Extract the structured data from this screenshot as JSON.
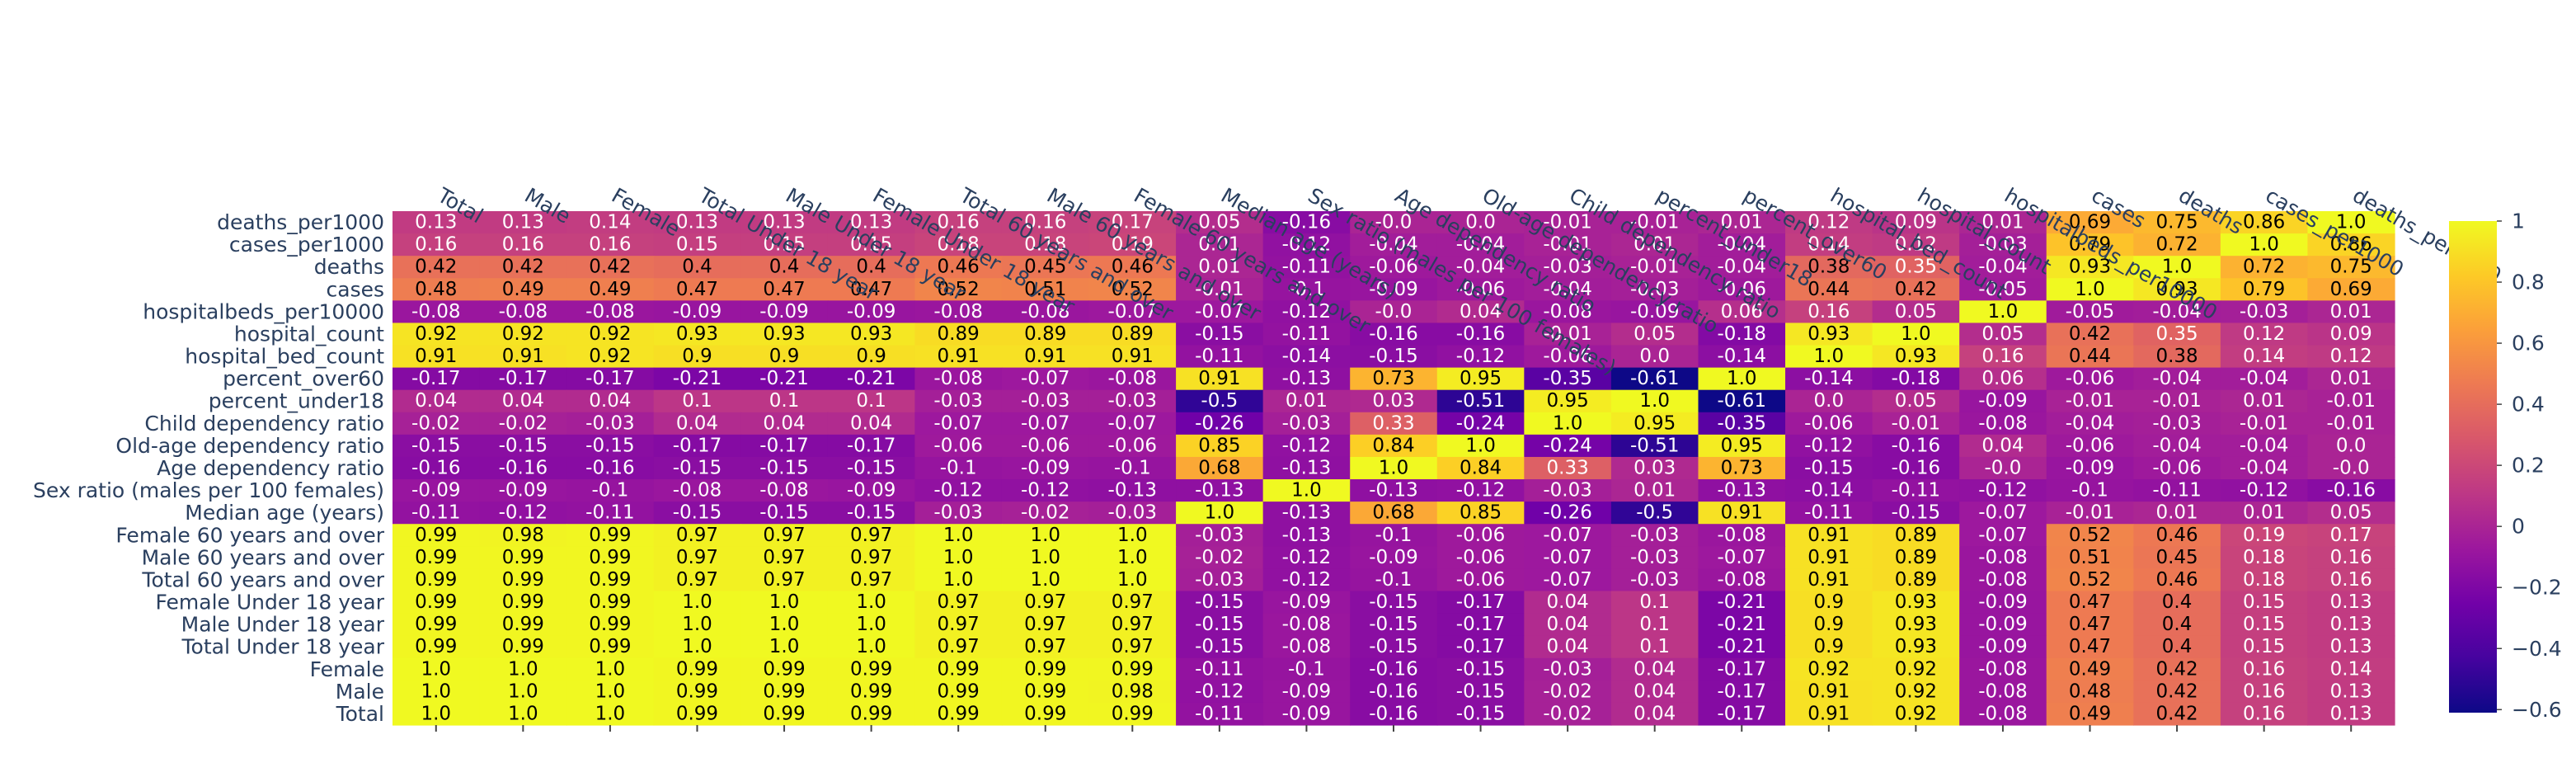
{
  "chart_data": {
    "type": "heatmap",
    "title": "",
    "xlabel": "",
    "ylabel": "",
    "x_categories": [
      "Total",
      "Male",
      "Female",
      "Total Under 18 year",
      "Male Under 18 year",
      "Female Under 18 year",
      "Total 60 years and over",
      "Male 60 years and over",
      "Female 60 years and over",
      "Median age (years)",
      "Sex ratio (males per 100 females)",
      "Age dependency ratio",
      "Old-age dependency ratio",
      "Child dependency ratio",
      "percent_under18",
      "percent_over60",
      "hospital_bed_count",
      "hospital_count",
      "hospitalbeds_per10000",
      "cases",
      "deaths",
      "cases_per1000",
      "deaths_per1000"
    ],
    "y_categories": [
      "deaths_per1000",
      "cases_per1000",
      "deaths",
      "cases",
      "hospitalbeds_per10000",
      "hospital_count",
      "hospital_bed_count",
      "percent_over60",
      "percent_under18",
      "Child dependency ratio",
      "Old-age dependency ratio",
      "Age dependency ratio",
      "Sex ratio (males per 100 females)",
      "Median age (years)",
      "Female 60 years and over",
      "Male 60 years and over",
      "Total 60 years and over",
      "Female Under 18 year",
      "Male Under 18 year",
      "Total Under 18 year",
      "Female",
      "Male",
      "Total"
    ],
    "z": [
      [
        "0.13",
        "0.13",
        "0.14",
        "0.13",
        "0.13",
        "0.13",
        "0.16",
        "0.16",
        "0.17",
        "0.05",
        "-0.16",
        "-0.0",
        "0.0",
        "-0.01",
        "-0.01",
        "0.01",
        "0.12",
        "0.09",
        "0.01",
        "0.69",
        "0.75",
        "0.86",
        "1.0"
      ],
      [
        "0.16",
        "0.16",
        "0.16",
        "0.15",
        "0.15",
        "0.15",
        "0.18",
        "0.18",
        "0.19",
        "0.01",
        "-0.12",
        "-0.04",
        "-0.04",
        "-0.01",
        "0.01",
        "-0.04",
        "0.14",
        "0.12",
        "-0.03",
        "0.79",
        "0.72",
        "1.0",
        "0.86"
      ],
      [
        "0.42",
        "0.42",
        "0.42",
        "0.4",
        "0.4",
        "0.4",
        "0.46",
        "0.45",
        "0.46",
        "0.01",
        "-0.11",
        "-0.06",
        "-0.04",
        "-0.03",
        "-0.01",
        "-0.04",
        "0.38",
        "0.35",
        "-0.04",
        "0.93",
        "1.0",
        "0.72",
        "0.75"
      ],
      [
        "0.48",
        "0.49",
        "0.49",
        "0.47",
        "0.47",
        "0.47",
        "0.52",
        "0.51",
        "0.52",
        "-0.01",
        "-0.1",
        "-0.09",
        "-0.06",
        "-0.04",
        "-0.03",
        "-0.06",
        "0.44",
        "0.42",
        "-0.05",
        "1.0",
        "0.93",
        "0.79",
        "0.69"
      ],
      [
        "-0.08",
        "-0.08",
        "-0.08",
        "-0.09",
        "-0.09",
        "-0.09",
        "-0.08",
        "-0.08",
        "-0.07",
        "-0.07",
        "-0.12",
        "-0.0",
        "0.04",
        "-0.08",
        "-0.09",
        "0.06",
        "0.16",
        "0.05",
        "1.0",
        "-0.05",
        "-0.04",
        "-0.03",
        "0.01"
      ],
      [
        "0.92",
        "0.92",
        "0.92",
        "0.93",
        "0.93",
        "0.93",
        "0.89",
        "0.89",
        "0.89",
        "-0.15",
        "-0.11",
        "-0.16",
        "-0.16",
        "-0.01",
        "0.05",
        "-0.18",
        "0.93",
        "1.0",
        "0.05",
        "0.42",
        "0.35",
        "0.12",
        "0.09"
      ],
      [
        "0.91",
        "0.91",
        "0.92",
        "0.9",
        "0.9",
        "0.9",
        "0.91",
        "0.91",
        "0.91",
        "-0.11",
        "-0.14",
        "-0.15",
        "-0.12",
        "-0.06",
        "0.0",
        "-0.14",
        "1.0",
        "0.93",
        "0.16",
        "0.44",
        "0.38",
        "0.14",
        "0.12"
      ],
      [
        "-0.17",
        "-0.17",
        "-0.17",
        "-0.21",
        "-0.21",
        "-0.21",
        "-0.08",
        "-0.07",
        "-0.08",
        "0.91",
        "-0.13",
        "0.73",
        "0.95",
        "-0.35",
        "-0.61",
        "1.0",
        "-0.14",
        "-0.18",
        "0.06",
        "-0.06",
        "-0.04",
        "-0.04",
        "0.01"
      ],
      [
        "0.04",
        "0.04",
        "0.04",
        "0.1",
        "0.1",
        "0.1",
        "-0.03",
        "-0.03",
        "-0.03",
        "-0.5",
        "0.01",
        "0.03",
        "-0.51",
        "0.95",
        "1.0",
        "-0.61",
        "0.0",
        "0.05",
        "-0.09",
        "-0.01",
        "-0.01",
        "0.01",
        "-0.01"
      ],
      [
        "-0.02",
        "-0.02",
        "-0.03",
        "0.04",
        "0.04",
        "0.04",
        "-0.07",
        "-0.07",
        "-0.07",
        "-0.26",
        "-0.03",
        "0.33",
        "-0.24",
        "1.0",
        "0.95",
        "-0.35",
        "-0.06",
        "-0.01",
        "-0.08",
        "-0.04",
        "-0.03",
        "-0.01",
        "-0.01"
      ],
      [
        "-0.15",
        "-0.15",
        "-0.15",
        "-0.17",
        "-0.17",
        "-0.17",
        "-0.06",
        "-0.06",
        "-0.06",
        "0.85",
        "-0.12",
        "0.84",
        "1.0",
        "-0.24",
        "-0.51",
        "0.95",
        "-0.12",
        "-0.16",
        "0.04",
        "-0.06",
        "-0.04",
        "-0.04",
        "0.0"
      ],
      [
        "-0.16",
        "-0.16",
        "-0.16",
        "-0.15",
        "-0.15",
        "-0.15",
        "-0.1",
        "-0.09",
        "-0.1",
        "0.68",
        "-0.13",
        "1.0",
        "0.84",
        "0.33",
        "0.03",
        "0.73",
        "-0.15",
        "-0.16",
        "-0.0",
        "-0.09",
        "-0.06",
        "-0.04",
        "-0.0"
      ],
      [
        "-0.09",
        "-0.09",
        "-0.1",
        "-0.08",
        "-0.08",
        "-0.09",
        "-0.12",
        "-0.12",
        "-0.13",
        "-0.13",
        "1.0",
        "-0.13",
        "-0.12",
        "-0.03",
        "0.01",
        "-0.13",
        "-0.14",
        "-0.11",
        "-0.12",
        "-0.1",
        "-0.11",
        "-0.12",
        "-0.16"
      ],
      [
        "-0.11",
        "-0.12",
        "-0.11",
        "-0.15",
        "-0.15",
        "-0.15",
        "-0.03",
        "-0.02",
        "-0.03",
        "1.0",
        "-0.13",
        "0.68",
        "0.85",
        "-0.26",
        "-0.5",
        "0.91",
        "-0.11",
        "-0.15",
        "-0.07",
        "-0.01",
        "0.01",
        "0.01",
        "0.05"
      ],
      [
        "0.99",
        "0.98",
        "0.99",
        "0.97",
        "0.97",
        "0.97",
        "1.0",
        "1.0",
        "1.0",
        "-0.03",
        "-0.13",
        "-0.1",
        "-0.06",
        "-0.07",
        "-0.03",
        "-0.08",
        "0.91",
        "0.89",
        "-0.07",
        "0.52",
        "0.46",
        "0.19",
        "0.17"
      ],
      [
        "0.99",
        "0.99",
        "0.99",
        "0.97",
        "0.97",
        "0.97",
        "1.0",
        "1.0",
        "1.0",
        "-0.02",
        "-0.12",
        "-0.09",
        "-0.06",
        "-0.07",
        "-0.03",
        "-0.07",
        "0.91",
        "0.89",
        "-0.08",
        "0.51",
        "0.45",
        "0.18",
        "0.16"
      ],
      [
        "0.99",
        "0.99",
        "0.99",
        "0.97",
        "0.97",
        "0.97",
        "1.0",
        "1.0",
        "1.0",
        "-0.03",
        "-0.12",
        "-0.1",
        "-0.06",
        "-0.07",
        "-0.03",
        "-0.08",
        "0.91",
        "0.89",
        "-0.08",
        "0.52",
        "0.46",
        "0.18",
        "0.16"
      ],
      [
        "0.99",
        "0.99",
        "0.99",
        "1.0",
        "1.0",
        "1.0",
        "0.97",
        "0.97",
        "0.97",
        "-0.15",
        "-0.09",
        "-0.15",
        "-0.17",
        "0.04",
        "0.1",
        "-0.21",
        "0.9",
        "0.93",
        "-0.09",
        "0.47",
        "0.4",
        "0.15",
        "0.13"
      ],
      [
        "0.99",
        "0.99",
        "0.99",
        "1.0",
        "1.0",
        "1.0",
        "0.97",
        "0.97",
        "0.97",
        "-0.15",
        "-0.08",
        "-0.15",
        "-0.17",
        "0.04",
        "0.1",
        "-0.21",
        "0.9",
        "0.93",
        "-0.09",
        "0.47",
        "0.4",
        "0.15",
        "0.13"
      ],
      [
        "0.99",
        "0.99",
        "0.99",
        "1.0",
        "1.0",
        "1.0",
        "0.97",
        "0.97",
        "0.97",
        "-0.15",
        "-0.08",
        "-0.15",
        "-0.17",
        "0.04",
        "0.1",
        "-0.21",
        "0.9",
        "0.93",
        "-0.09",
        "0.47",
        "0.4",
        "0.15",
        "0.13"
      ],
      [
        "1.0",
        "1.0",
        "1.0",
        "0.99",
        "0.99",
        "0.99",
        "0.99",
        "0.99",
        "0.99",
        "-0.11",
        "-0.1",
        "-0.16",
        "-0.15",
        "-0.03",
        "0.04",
        "-0.17",
        "0.92",
        "0.92",
        "-0.08",
        "0.49",
        "0.42",
        "0.16",
        "0.14"
      ],
      [
        "1.0",
        "1.0",
        "1.0",
        "0.99",
        "0.99",
        "0.99",
        "0.99",
        "0.99",
        "0.98",
        "-0.12",
        "-0.09",
        "-0.16",
        "-0.15",
        "-0.02",
        "0.04",
        "-0.17",
        "0.91",
        "0.92",
        "-0.08",
        "0.48",
        "0.42",
        "0.16",
        "0.13"
      ],
      [
        "1.0",
        "1.0",
        "1.0",
        "0.99",
        "0.99",
        "0.99",
        "0.99",
        "0.99",
        "0.99",
        "-0.11",
        "-0.09",
        "-0.16",
        "-0.15",
        "-0.02",
        "0.04",
        "-0.17",
        "0.91",
        "0.92",
        "-0.08",
        "0.49",
        "0.42",
        "0.16",
        "0.13"
      ]
    ],
    "zrange": [
      -0.61,
      1.0
    ],
    "colorscale_name": "Plasma",
    "colorscale": [
      "#0d0887",
      "#46039f",
      "#7201a8",
      "#9c179e",
      "#bd3786",
      "#d8576b",
      "#ed7953",
      "#fb9f3a",
      "#fdca26",
      "#f0f921"
    ],
    "colorbar": {
      "ticks": [
        "1",
        "0.8",
        "0.6",
        "0.4",
        "0.2",
        "0",
        "−0.2",
        "−0.4",
        "−0.6"
      ],
      "tick_values": [
        1,
        0.8,
        0.6,
        0.4,
        0.2,
        0,
        -0.2,
        -0.4,
        -0.6
      ]
    },
    "x_axis_side": "top",
    "label_color": "#2a3f5f",
    "grid": false
  }
}
